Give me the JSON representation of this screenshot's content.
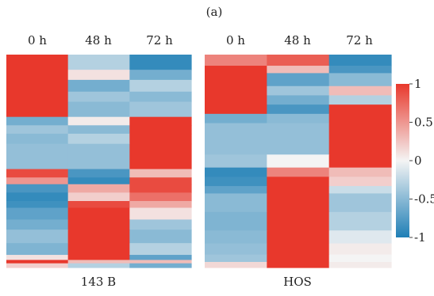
{
  "figure": {
    "panel_label": "(a)"
  },
  "chart_data": {
    "type": "heatmap",
    "colorscale": {
      "low": "#1f7fb6",
      "mid": "#f4f4f4",
      "high": "#e8382c",
      "min": -1,
      "max": 1
    },
    "colorbar": {
      "ticks": [
        1,
        0.5,
        0,
        -0.5,
        -1
      ],
      "tick_labels": [
        "1",
        "0.5",
        "0",
        "-0.5",
        "-1"
      ]
    },
    "heatmaps": [
      {
        "name": "143 B",
        "columns": [
          "0 h",
          "48 h",
          "72 h"
        ],
        "segments": [
          {
            "h": 18,
            "v": [
              1.0,
              -0.3,
              -0.9
            ]
          },
          {
            "h": 12,
            "v": [
              1.0,
              0.1,
              -0.6
            ]
          },
          {
            "h": 14,
            "v": [
              1.0,
              -0.6,
              -0.3
            ]
          },
          {
            "h": 12,
            "v": [
              1.0,
              -0.4,
              -0.5
            ]
          },
          {
            "h": 18,
            "v": [
              1.0,
              -0.5,
              -0.4
            ]
          },
          {
            "h": 10,
            "v": [
              -0.6,
              0.05,
              1.0
            ]
          },
          {
            "h": 10,
            "v": [
              -0.4,
              -0.5,
              1.0
            ]
          },
          {
            "h": 12,
            "v": [
              -0.5,
              -0.3,
              1.0
            ]
          },
          {
            "h": 30,
            "v": [
              -0.45,
              -0.45,
              1.0
            ]
          },
          {
            "h": 10,
            "v": [
              0.9,
              -0.8,
              0.3
            ]
          },
          {
            "h": 8,
            "v": [
              0.5,
              -0.9,
              0.9
            ]
          },
          {
            "h": 10,
            "v": [
              -0.8,
              0.4,
              0.9
            ]
          },
          {
            "h": 10,
            "v": [
              -0.9,
              0.2,
              0.7
            ]
          },
          {
            "h": 8,
            "v": [
              -0.85,
              0.9,
              0.4
            ]
          },
          {
            "h": 14,
            "v": [
              -0.7,
              1.0,
              0.1
            ]
          },
          {
            "h": 12,
            "v": [
              -0.6,
              1.0,
              -0.4
            ]
          },
          {
            "h": 16,
            "v": [
              -0.45,
              1.0,
              -0.5
            ]
          },
          {
            "h": 14,
            "v": [
              -0.55,
              1.0,
              -0.3
            ]
          },
          {
            "h": 6,
            "v": [
              0.1,
              1.0,
              -0.7
            ]
          },
          {
            "h": 4,
            "v": [
              1.0,
              0.3,
              0.3
            ]
          },
          {
            "h": 5,
            "v": [
              0.2,
              -0.3,
              -0.6
            ]
          }
        ]
      },
      {
        "name": "HOS",
        "columns": [
          "0 h",
          "48 h",
          "72 h"
        ],
        "segments": [
          {
            "h": 12,
            "v": [
              0.6,
              0.8,
              -0.9
            ]
          },
          {
            "h": 8,
            "v": [
              1.0,
              0.3,
              -0.8
            ]
          },
          {
            "h": 14,
            "v": [
              1.0,
              -0.7,
              -0.5
            ]
          },
          {
            "h": 10,
            "v": [
              1.0,
              -0.4,
              0.3
            ]
          },
          {
            "h": 10,
            "v": [
              1.0,
              -0.6,
              -0.3
            ]
          },
          {
            "h": 10,
            "v": [
              1.0,
              -0.8,
              1.0
            ]
          },
          {
            "h": 10,
            "v": [
              -0.6,
              -0.5,
              1.0
            ]
          },
          {
            "h": 18,
            "v": [
              -0.45,
              -0.45,
              1.0
            ]
          },
          {
            "h": 16,
            "v": [
              -0.45,
              -0.45,
              1.0
            ]
          },
          {
            "h": 14,
            "v": [
              -0.4,
              0.0,
              1.0
            ]
          },
          {
            "h": 10,
            "v": [
              -0.9,
              0.6,
              0.3
            ]
          },
          {
            "h": 10,
            "v": [
              -0.85,
              1.0,
              0.2
            ]
          },
          {
            "h": 8,
            "v": [
              -0.7,
              1.0,
              -0.2
            ]
          },
          {
            "h": 20,
            "v": [
              -0.5,
              1.0,
              -0.4
            ]
          },
          {
            "h": 20,
            "v": [
              -0.55,
              1.0,
              -0.3
            ]
          },
          {
            "h": 14,
            "v": [
              -0.5,
              1.0,
              -0.1
            ]
          },
          {
            "h": 12,
            "v": [
              -0.45,
              1.0,
              0.05
            ]
          },
          {
            "h": 8,
            "v": [
              -0.4,
              1.0,
              0.0
            ]
          },
          {
            "h": 6,
            "v": [
              0.15,
              1.0,
              0.05
            ]
          }
        ]
      }
    ]
  }
}
